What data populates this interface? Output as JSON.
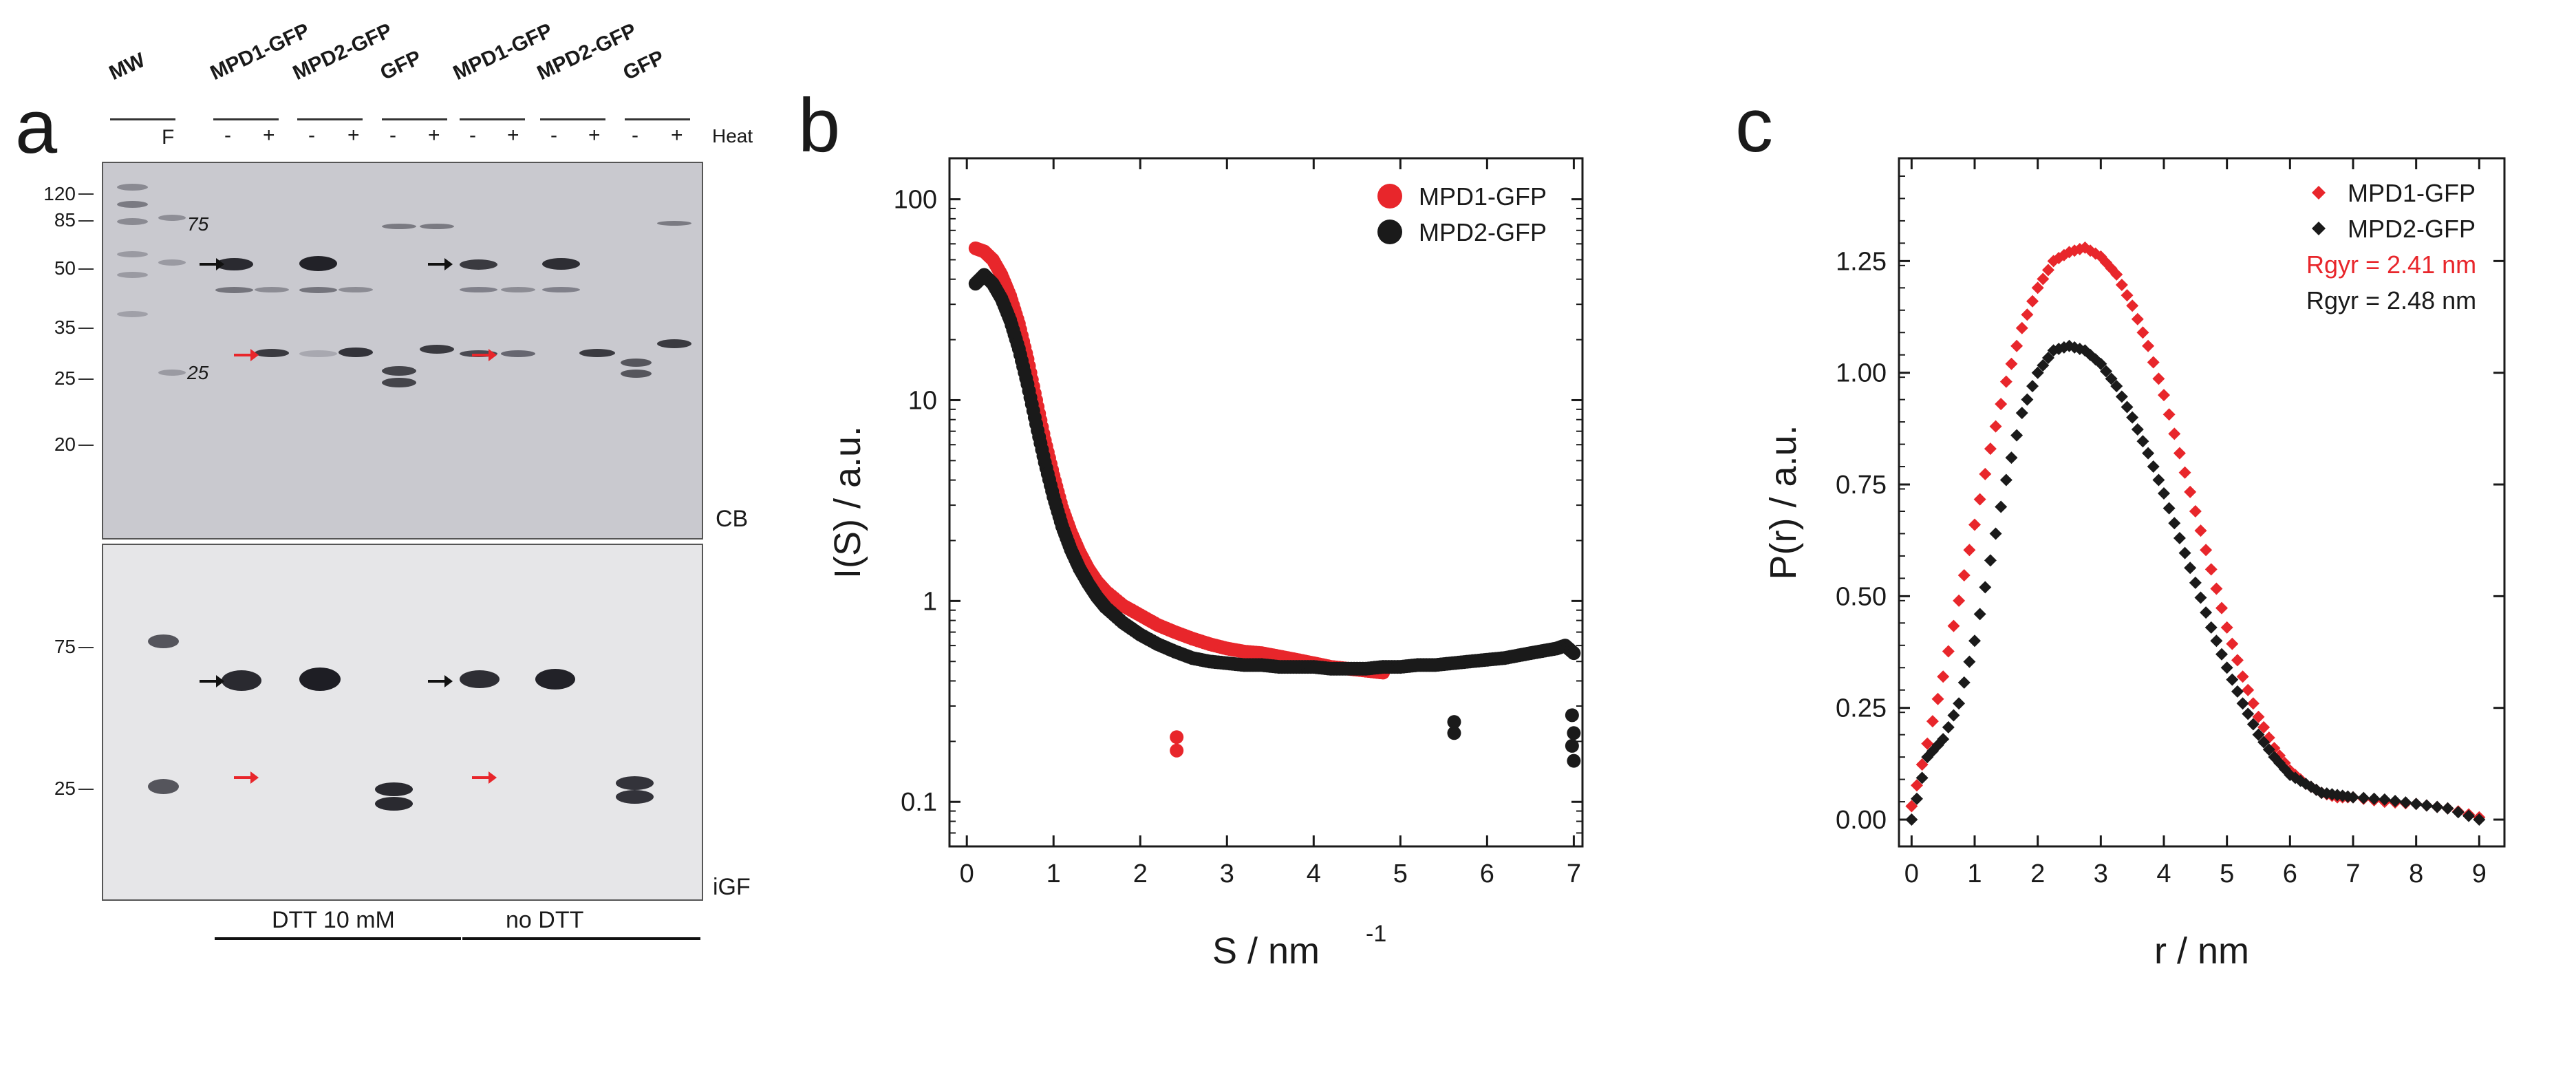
{
  "figure": {
    "panel_a": {
      "letter": "a",
      "lanes": {
        "mw": "MW",
        "mpd1_dtt": "MPD1-GFP",
        "mpd2_dtt": "MPD2-GFP",
        "gfp_dtt": "GFP",
        "mpd1_nodtt": "MPD1-GFP",
        "mpd2_nodtt": "MPD2-GFP",
        "gfp_nodtt": "GFP"
      },
      "f_label": "F",
      "minus": "-",
      "plus": "+",
      "heat_label": "Heat",
      "mw_markers_top": [
        "120",
        "85",
        "50",
        "35",
        "25",
        "20"
      ],
      "inner_markers": [
        "75",
        "25"
      ],
      "mw_markers_bottom": [
        "75",
        "25"
      ],
      "stain_top": "CB",
      "stain_bottom": "iGF",
      "condition_dtt": "DTT 10 mM",
      "condition_nodtt": "no DTT"
    },
    "panel_b": {
      "letter": "b"
    },
    "panel_c": {
      "letter": "c"
    }
  },
  "chart_data": [
    {
      "type": "scatter",
      "panel": "b",
      "title": "",
      "xlabel": "S / nm",
      "xlabel_sup": "-1",
      "ylabel": "I(S) / a.u.",
      "yscale": "log",
      "xlim": [
        -0.2,
        7.1
      ],
      "ylim": [
        0.06,
        160
      ],
      "xticks": [
        0,
        1,
        2,
        3,
        4,
        5,
        6,
        7
      ],
      "yticks": [
        0.1,
        1,
        10,
        100
      ],
      "ytick_labels": [
        "0.1",
        "1",
        "10",
        "100"
      ],
      "legend_position": "top-right",
      "colors": {
        "MPD1-GFP": "#e8262b",
        "MPD2-GFP": "#1a1a1a"
      },
      "series": [
        {
          "name": "MPD1-GFP",
          "x": [
            0.1,
            0.2,
            0.3,
            0.4,
            0.5,
            0.6,
            0.7,
            0.8,
            0.9,
            1.0,
            1.1,
            1.2,
            1.3,
            1.4,
            1.5,
            1.6,
            1.8,
            2.0,
            2.2,
            2.4,
            2.6,
            2.8,
            3.0,
            3.2,
            3.4,
            3.6,
            3.8,
            4.0,
            4.2,
            4.4,
            4.6,
            4.8
          ],
          "y": [
            57,
            55,
            50,
            42,
            33,
            24,
            16,
            10,
            6.3,
            4.2,
            2.9,
            2.2,
            1.75,
            1.45,
            1.25,
            1.12,
            0.95,
            0.85,
            0.76,
            0.7,
            0.65,
            0.61,
            0.58,
            0.56,
            0.55,
            0.53,
            0.51,
            0.49,
            0.47,
            0.46,
            0.45,
            0.44
          ]
        },
        {
          "name": "MPD2-GFP",
          "x": [
            0.1,
            0.2,
            0.3,
            0.4,
            0.5,
            0.6,
            0.7,
            0.8,
            0.9,
            1.0,
            1.1,
            1.2,
            1.3,
            1.4,
            1.5,
            1.6,
            1.8,
            2.0,
            2.2,
            2.4,
            2.6,
            2.8,
            3.0,
            3.2,
            3.4,
            3.6,
            3.8,
            4.0,
            4.2,
            4.4,
            4.6,
            4.8,
            5.0,
            5.2,
            5.4,
            5.6,
            5.8,
            6.0,
            6.2,
            6.4,
            6.6,
            6.8,
            6.9,
            7.0
          ],
          "y": [
            38,
            42,
            38,
            32,
            25,
            18,
            12,
            7.6,
            4.9,
            3.3,
            2.35,
            1.8,
            1.45,
            1.22,
            1.05,
            0.93,
            0.78,
            0.68,
            0.61,
            0.56,
            0.52,
            0.5,
            0.49,
            0.48,
            0.48,
            0.47,
            0.47,
            0.47,
            0.46,
            0.46,
            0.46,
            0.47,
            0.47,
            0.48,
            0.48,
            0.49,
            0.5,
            0.51,
            0.52,
            0.54,
            0.56,
            0.58,
            0.6,
            0.55
          ]
        },
        {
          "name": "MPD1-GFP outliers",
          "x": [
            2.42,
            2.42
          ],
          "y": [
            0.21,
            0.18
          ]
        },
        {
          "name": "MPD2-GFP outliers",
          "x": [
            5.62,
            5.62,
            6.98,
            6.98,
            7.0,
            7.0
          ],
          "y": [
            0.25,
            0.22,
            0.27,
            0.19,
            0.22,
            0.16
          ]
        }
      ],
      "legend": [
        "MPD1-GFP",
        "MPD2-GFP"
      ]
    },
    {
      "type": "scatter",
      "panel": "c",
      "title": "",
      "xlabel": "r / nm",
      "ylabel": "P(r) / a.u.",
      "xlim": [
        -0.2,
        9.4
      ],
      "ylim": [
        -0.06,
        1.48
      ],
      "xticks": [
        0,
        1,
        2,
        3,
        4,
        5,
        6,
        7,
        8,
        9
      ],
      "yticks": [
        0.0,
        0.25,
        0.5,
        0.75,
        1.0,
        1.25
      ],
      "ytick_labels": [
        "0.00",
        "0.25",
        "0.50",
        "0.75",
        "1.00",
        "1.25"
      ],
      "legend_position": "top-right",
      "colors": {
        "MPD1-GFP": "#e8262b",
        "MPD2-GFP": "#1a1a1a"
      },
      "series": [
        {
          "name": "MPD1-GFP",
          "x": [
            0.0,
            0.25,
            0.5,
            0.75,
            1.0,
            1.25,
            1.5,
            1.75,
            2.0,
            2.25,
            2.5,
            2.75,
            3.0,
            3.25,
            3.5,
            3.75,
            4.0,
            4.25,
            4.5,
            4.75,
            5.0,
            5.25,
            5.5,
            5.75,
            6.0,
            6.25,
            6.5,
            6.75,
            7.0,
            7.5,
            8.0,
            8.5,
            9.0
          ],
          "y": [
            0.03,
            0.17,
            0.32,
            0.49,
            0.66,
            0.83,
            0.98,
            1.1,
            1.19,
            1.25,
            1.27,
            1.28,
            1.26,
            1.22,
            1.15,
            1.06,
            0.95,
            0.82,
            0.69,
            0.56,
            0.43,
            0.32,
            0.23,
            0.16,
            0.11,
            0.08,
            0.06,
            0.05,
            0.05,
            0.04,
            0.035,
            0.025,
            0.005
          ]
        },
        {
          "name": "MPD2-GFP",
          "x": [
            0.0,
            0.25,
            0.5,
            0.75,
            1.0,
            1.25,
            1.5,
            1.75,
            2.0,
            2.25,
            2.5,
            2.75,
            3.0,
            3.25,
            3.5,
            3.75,
            4.0,
            4.25,
            4.5,
            4.75,
            5.0,
            5.25,
            5.5,
            5.75,
            6.0,
            6.25,
            6.5,
            6.75,
            7.0,
            7.5,
            8.0,
            8.5,
            9.0
          ],
          "y": [
            0.0,
            0.14,
            0.18,
            0.26,
            0.4,
            0.58,
            0.76,
            0.91,
            1.0,
            1.05,
            1.06,
            1.05,
            1.02,
            0.97,
            0.9,
            0.82,
            0.73,
            0.63,
            0.53,
            0.43,
            0.34,
            0.26,
            0.19,
            0.14,
            0.1,
            0.08,
            0.06,
            0.055,
            0.05,
            0.045,
            0.035,
            0.025,
            0.0
          ]
        }
      ],
      "legend": [
        "MPD1-GFP",
        "MPD2-GFP"
      ],
      "annotations": [
        {
          "text": "Rgyr = 2.41 nm",
          "color": "#e8262b"
        },
        {
          "text": "Rgyr = 2.48 nm",
          "color": "#1a1a1a"
        }
      ]
    }
  ]
}
